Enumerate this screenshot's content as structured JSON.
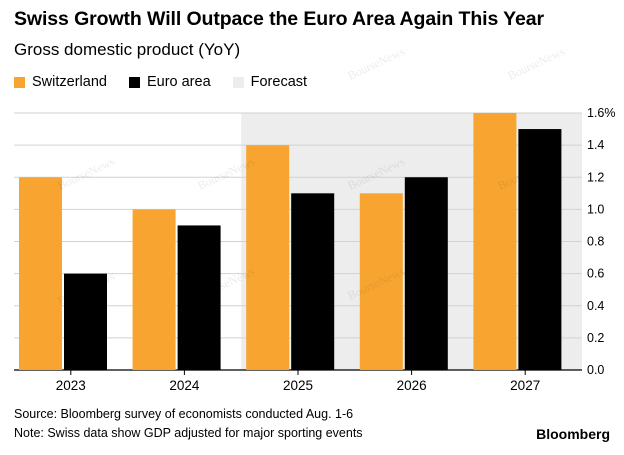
{
  "header": {
    "title": "Swiss Growth Will Outpace the Euro Area Again This Year",
    "subtitle": "Gross domestic product (YoY)"
  },
  "legend": [
    {
      "label": "Switzerland",
      "color": "#F7A530"
    },
    {
      "label": "Euro area",
      "color": "#000000"
    },
    {
      "label": "Forecast",
      "color": "#EDEDED"
    }
  ],
  "chart_data": {
    "type": "bar",
    "title": "Swiss Growth Will Outpace the Euro Area Again This Year",
    "subtitle": "Gross domestic product (YoY)",
    "categories": [
      "2023",
      "2024",
      "2025",
      "2026",
      "2027"
    ],
    "series": [
      {
        "name": "Switzerland",
        "color": "#F7A530",
        "values": [
          1.2,
          1.0,
          1.4,
          1.1,
          1.6
        ]
      },
      {
        "name": "Euro area",
        "color": "#000000",
        "values": [
          0.6,
          0.9,
          1.1,
          1.2,
          1.5
        ]
      }
    ],
    "forecast_start_index": 2,
    "forecast_label": "Forecast",
    "forecast_color": "#EDEDED",
    "ylim": [
      0,
      1.6
    ],
    "yticks": [
      "0.0",
      "0.2",
      "0.4",
      "0.6",
      "0.8",
      "1.0",
      "1.2",
      "1.4",
      "1.6%"
    ],
    "ytick_values": [
      0,
      0.2,
      0.4,
      0.6,
      0.8,
      1.0,
      1.2,
      1.4,
      1.6
    ],
    "xlabel": "",
    "ylabel": "",
    "grid": true
  },
  "footer": {
    "source": "Source: Bloomberg survey of economists conducted Aug. 1-6",
    "note": "Note: Swiss data show GDP adjusted for major sporting events",
    "brand": "Bloomberg"
  },
  "watermark": "BourseNews"
}
